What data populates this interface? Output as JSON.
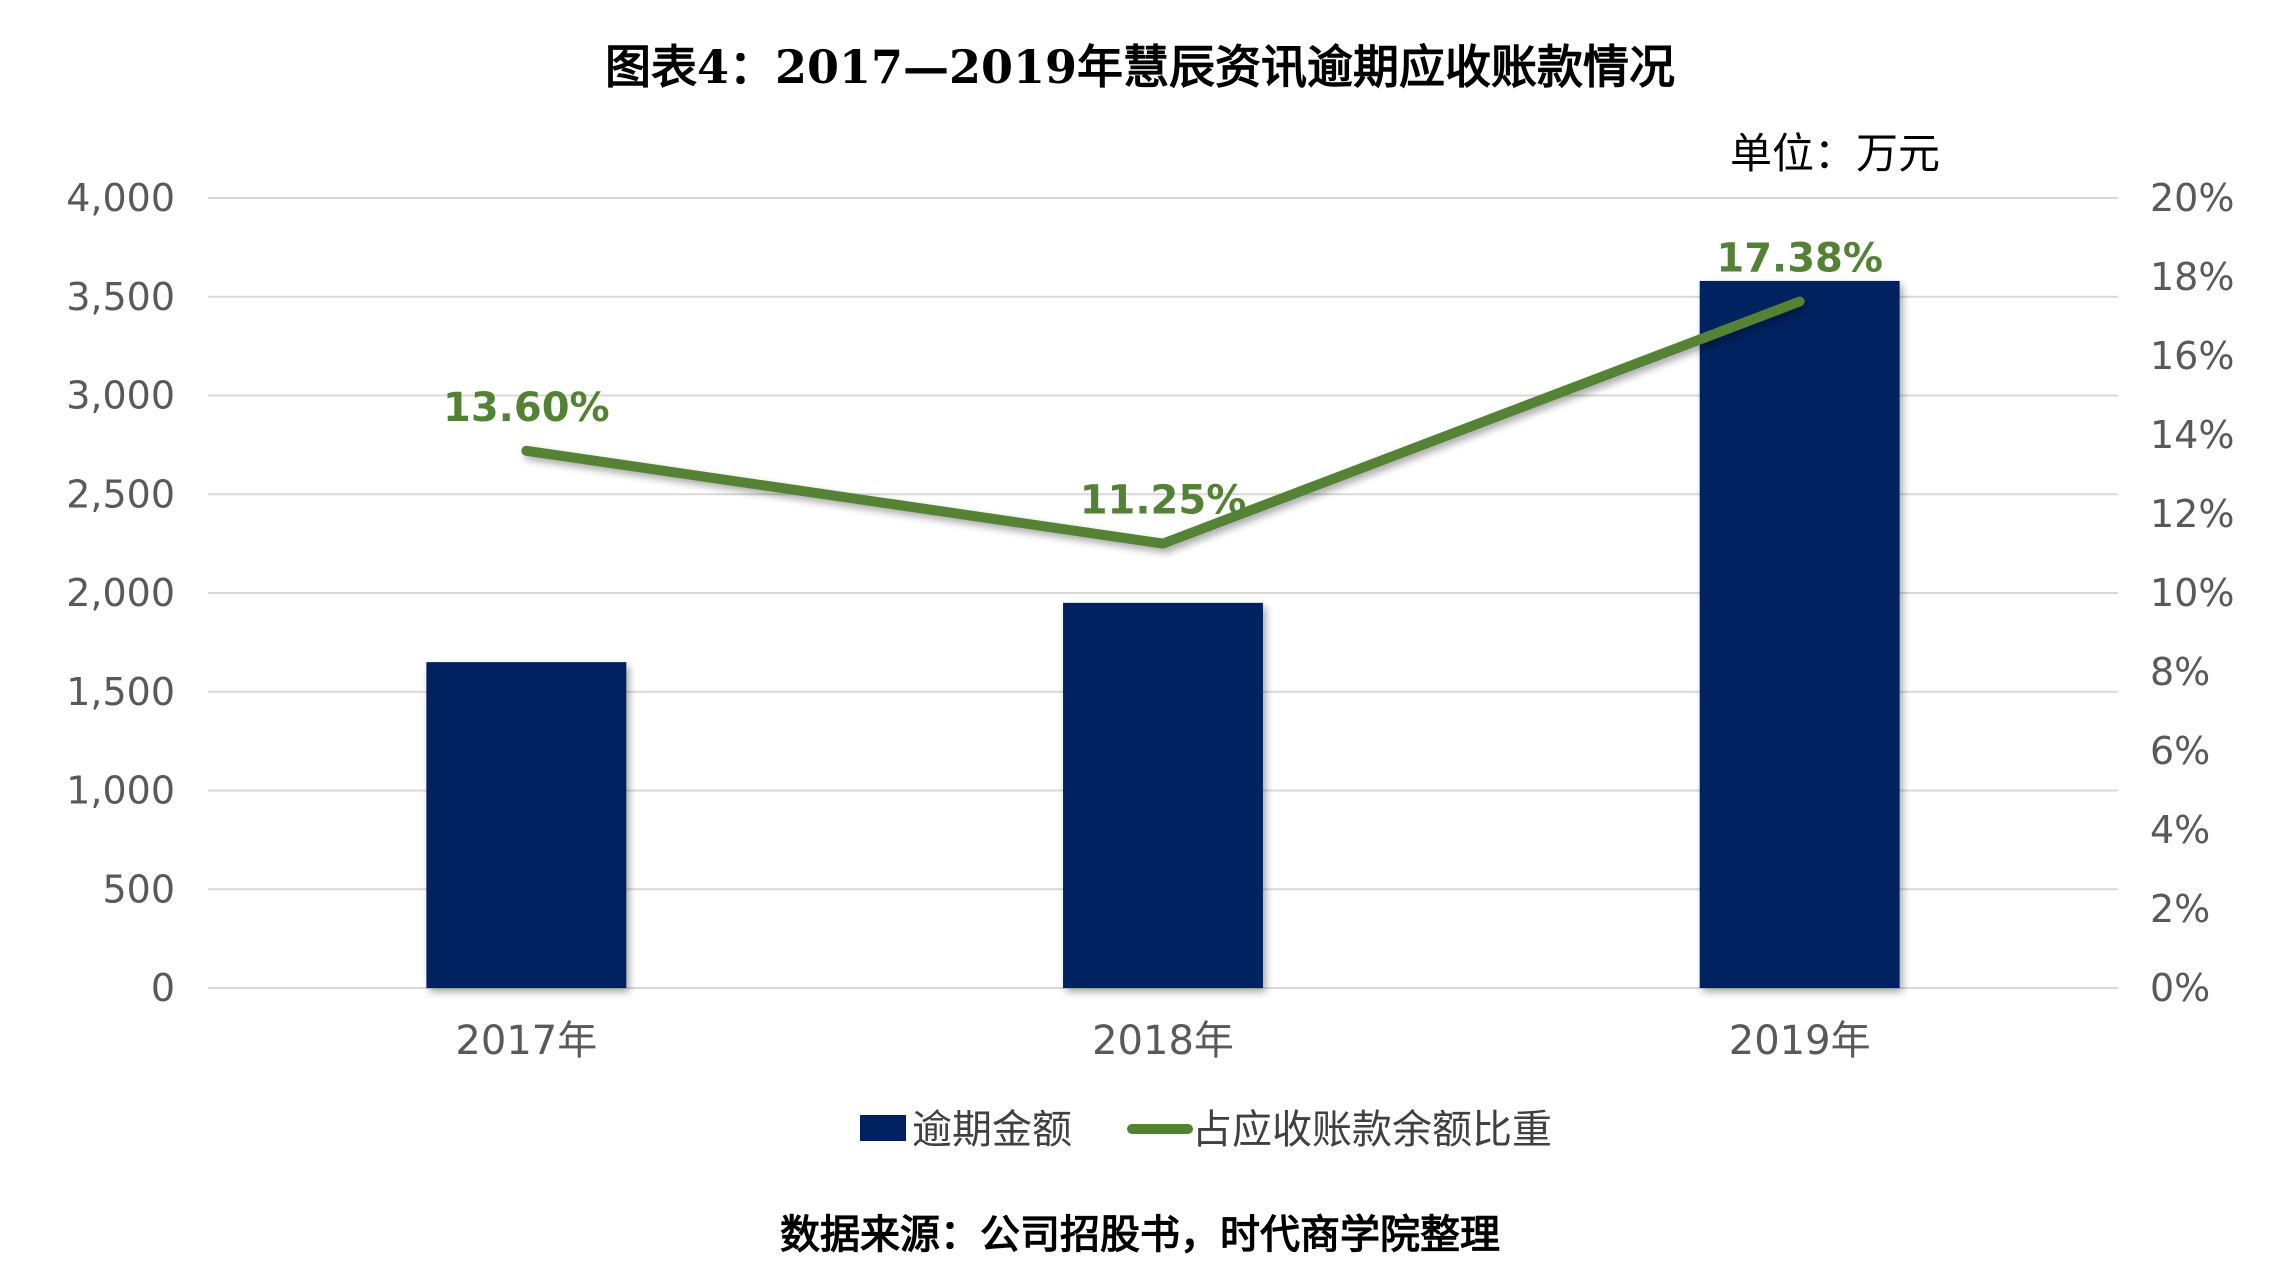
{
  "chart_data": {
    "type": "bar",
    "title": "图表4：2017—2019年慧辰资讯逾期应收账款情况",
    "unit": "单位：万元",
    "source": "数据来源：公司招股书，时代商学院整理",
    "categories": [
      "2017年",
      "2018年",
      "2019年"
    ],
    "y_left": {
      "range": [
        0,
        4000
      ],
      "ticks": [
        "0",
        "500",
        "1,000",
        "1,500",
        "2,000",
        "2,500",
        "3,000",
        "3,500",
        "4,000"
      ]
    },
    "y_right": {
      "range": [
        0,
        20
      ],
      "ticks": [
        "0%",
        "2%",
        "4%",
        "6%",
        "8%",
        "10%",
        "12%",
        "14%",
        "16%",
        "18%",
        "20%"
      ]
    },
    "series": [
      {
        "name": "逾期金额",
        "type": "bar",
        "axis": "left",
        "values": [
          1650,
          1950,
          3580
        ],
        "color": "#002060"
      },
      {
        "name": "占应收账款余额比重",
        "type": "line",
        "axis": "right",
        "values": [
          13.6,
          11.25,
          17.38
        ],
        "labels": [
          "13.60%",
          "11.25%",
          "17.38%"
        ],
        "color": "#548235"
      }
    ],
    "grid": true,
    "legend_position": "bottom"
  }
}
